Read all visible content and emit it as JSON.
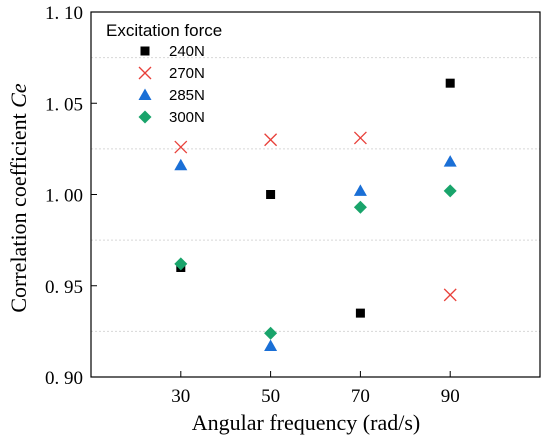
{
  "chart_data": {
    "type": "scatter",
    "title": "",
    "xlabel": "Angular frequency (rad/s)",
    "ylabel_main": "Correlation coefficient ",
    "ylabel_italic": "Ce",
    "xlim": [
      10,
      110
    ],
    "ylim": [
      0.9,
      1.1
    ],
    "x_ticks": [
      30,
      50,
      70,
      90
    ],
    "x_tick_labels": [
      "30",
      "50",
      "70",
      "90"
    ],
    "y_ticks": [
      0.9,
      0.95,
      1.0,
      1.05,
      1.1
    ],
    "y_tick_labels": [
      "0. 90",
      "0. 95",
      "1. 00",
      "1. 05",
      "1. 10"
    ],
    "grid": true,
    "grid_values": [
      0.925,
      0.975,
      1.025,
      1.075
    ],
    "legend_title": "Excitation force",
    "legend_position": "top-left",
    "series": [
      {
        "name": "240N",
        "marker": "square",
        "color": "#000000",
        "x": [
          30,
          50,
          70,
          90
        ],
        "y": [
          0.96,
          1.0,
          0.935,
          1.061
        ]
      },
      {
        "name": "270N",
        "marker": "x",
        "color": "#e8403a",
        "x": [
          30,
          50,
          70,
          90
        ],
        "y": [
          1.026,
          1.03,
          1.031,
          0.945
        ]
      },
      {
        "name": "285N",
        "marker": "triangle",
        "color": "#1a6fd6",
        "x": [
          30,
          50,
          70,
          90
        ],
        "y": [
          1.016,
          0.917,
          1.002,
          1.018
        ]
      },
      {
        "name": "300N",
        "marker": "diamond",
        "color": "#19a46b",
        "x": [
          30,
          50,
          70,
          90
        ],
        "y": [
          0.962,
          0.924,
          0.993,
          1.002
        ]
      }
    ]
  }
}
